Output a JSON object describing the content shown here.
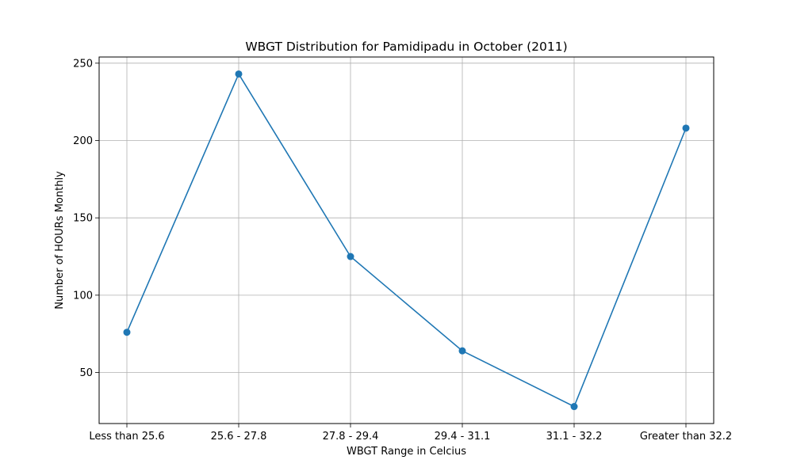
{
  "chart_data": {
    "type": "line",
    "title": "WBGT Distribution for Pamidipadu in October (2011)",
    "xlabel": "WBGT Range in Celcius",
    "ylabel": "Number of HOURs Monthly",
    "categories": [
      "Less than 25.6",
      "25.6 - 27.8",
      "27.8 - 29.4",
      "29.4 - 31.1",
      "31.1 - 32.2",
      "Greater than 32.2"
    ],
    "series": [
      {
        "values": [
          76,
          243,
          125,
          64,
          28,
          208
        ]
      }
    ],
    "yticks": [
      50,
      100,
      150,
      200,
      250
    ],
    "ylim": [
      17,
      254
    ],
    "grid": true,
    "line_color": "#1f77b4"
  }
}
